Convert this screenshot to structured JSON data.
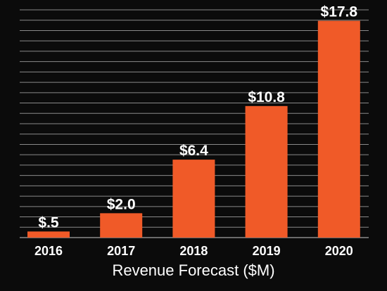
{
  "chart_data": {
    "type": "bar",
    "categories": [
      "2016",
      "2017",
      "2018",
      "2019",
      "2020"
    ],
    "values": [
      0.5,
      2.0,
      6.4,
      10.8,
      17.8
    ],
    "data_labels": [
      "$.5",
      "$2.0",
      "$6.4",
      "$10.8",
      "$17.8"
    ],
    "title": "",
    "xlabel": "Revenue Forecast ($M)",
    "ylabel": "",
    "ylim": [
      0,
      18.7
    ],
    "grid": true,
    "gridlines": 22,
    "legend": "none",
    "colors": {
      "bar": "#f05a28",
      "background": "#0b0b0b",
      "grid": "#8a8a8a",
      "text": "#ffffff"
    }
  }
}
